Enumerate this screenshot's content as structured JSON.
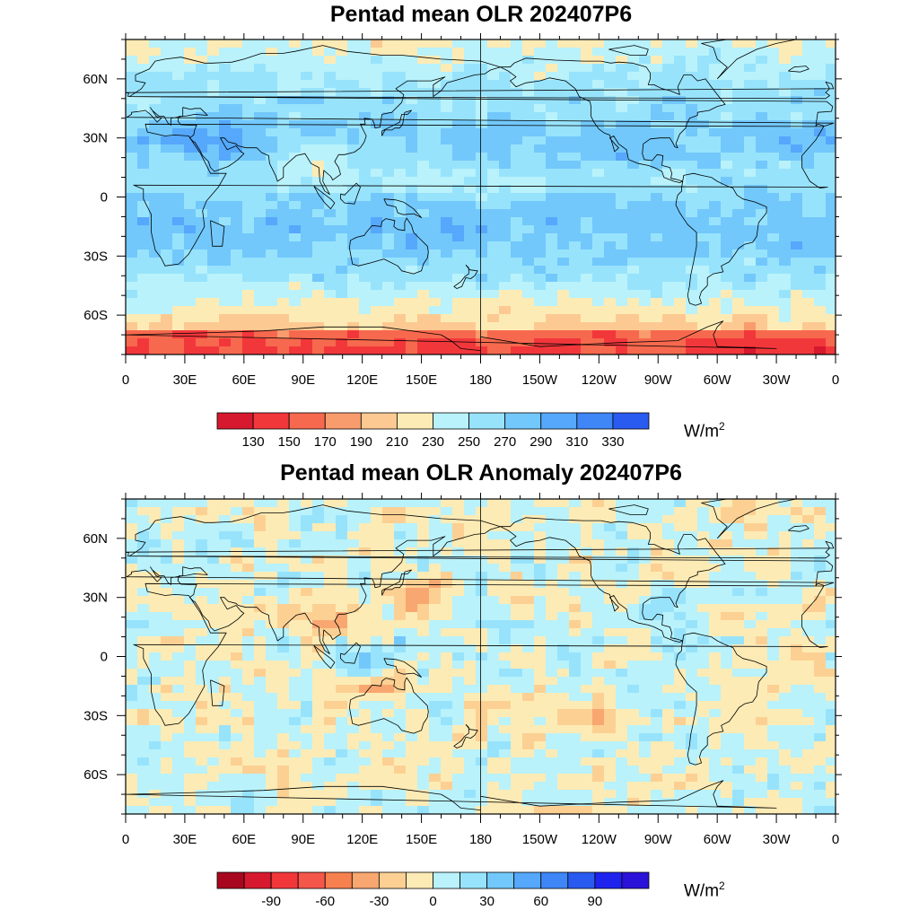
{
  "panels": [
    {
      "title": "Pentad mean OLR 202407P6",
      "units": "W/m",
      "units_sup": "2",
      "x_ticks": [
        "0",
        "30E",
        "60E",
        "90E",
        "120E",
        "150E",
        "180",
        "150W",
        "120W",
        "90W",
        "60W",
        "30W",
        "0"
      ],
      "y_ticks": [
        "60N",
        "30N",
        "0",
        "30S",
        "60S"
      ],
      "colorbar": {
        "labels": [
          "130",
          "150",
          "170",
          "190",
          "210",
          "230",
          "250",
          "270",
          "290",
          "310",
          "330"
        ],
        "colors": [
          "#d6192e",
          "#f2373b",
          "#f7694e",
          "#f99c6d",
          "#fdc992",
          "#fdebb5",
          "#b9f2fb",
          "#98e3fc",
          "#72c8fb",
          "#55a8fb",
          "#3f86f6",
          "#2a5bf0"
        ]
      }
    },
    {
      "title": "Pentad mean OLR Anomaly 202407P6",
      "units": "W/m",
      "units_sup": "2",
      "x_ticks": [
        "0",
        "30E",
        "60E",
        "90E",
        "120E",
        "150E",
        "180",
        "150W",
        "120W",
        "90W",
        "60W",
        "30W",
        "0"
      ],
      "y_ticks": [
        "60N",
        "30N",
        "0",
        "30S",
        "60S"
      ],
      "colorbar": {
        "labels": [
          "-90",
          "-60",
          "-30",
          "0",
          "30",
          "60",
          "90"
        ],
        "colors": [
          "#a8081f",
          "#d6192e",
          "#f2373b",
          "#f5564a",
          "#f7804f",
          "#f9a771",
          "#fcd093",
          "#fdebb5",
          "#b9f2fb",
          "#98e3fc",
          "#72c8fb",
          "#55a8fb",
          "#3f86f6",
          "#2a5bf0",
          "#1f23ee",
          "#2a12d8"
        ]
      }
    }
  ]
}
